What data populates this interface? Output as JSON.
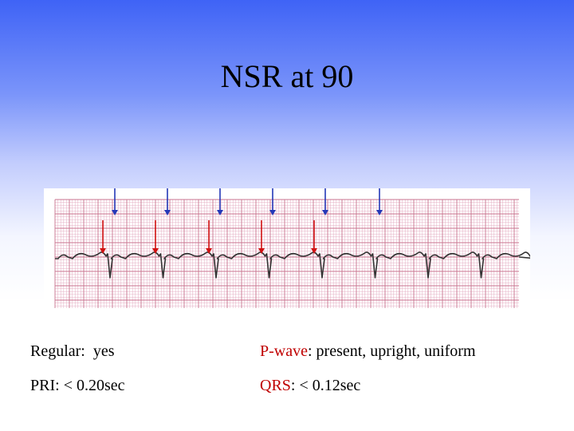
{
  "slide": {
    "title": "NSR at 90",
    "rows": [
      {
        "left_label": "Regular:",
        "left_value": "yes",
        "right_label": "P-wave",
        "right_value": ": present, upright, uniform"
      },
      {
        "left_label": "PRI:",
        "left_value": "< 0.20sec",
        "right_label": "QRS",
        "right_value": ": < 0.12sec"
      }
    ]
  },
  "colors": {
    "background_top": "#3f63f6",
    "background_bottom": "#ffffff",
    "grid_minor": "#e5aec3",
    "grid_major": "#c9738f",
    "trace": "#333333",
    "arrow_blue": "#2438b8",
    "arrow_red": "#d01010",
    "label_accent": "#c00000"
  },
  "ecg_strip": {
    "rhythm": "normal sinus rhythm",
    "heart_rate_bpm": 90,
    "beats_shown": 9,
    "blue_arrow_count": 6,
    "red_arrow_count": 5
  }
}
